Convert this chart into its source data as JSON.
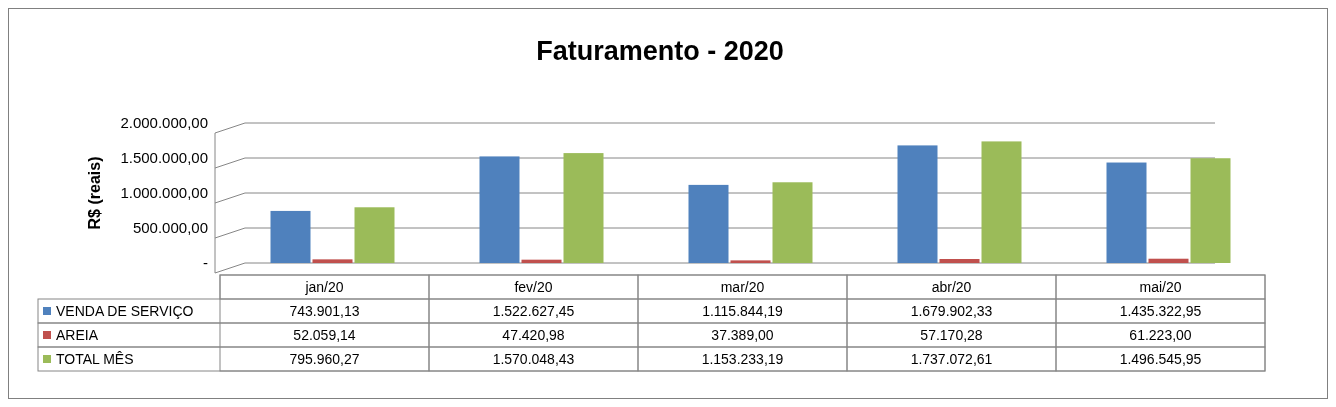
{
  "chart_data": {
    "type": "bar",
    "title": "Faturamento - 2020",
    "ylabel": "R$ (reais)",
    "categories": [
      "jan/20",
      "fev/20",
      "mar/20",
      "abr/20",
      "mai/20"
    ],
    "series": [
      {
        "name": "VENDA DE SERVIÇO",
        "color": "#4f81bd",
        "values": [
          743901.13,
          1522627.45,
          1115844.19,
          1679902.33,
          1435322.95
        ],
        "value_labels": [
          "743.901,13",
          "1.522.627,45",
          "1.115.844,19",
          "1.679.902,33",
          "1.435.322,95"
        ]
      },
      {
        "name": "AREIA",
        "color": "#c0504d",
        "values": [
          52059.14,
          47420.98,
          37389.0,
          57170.28,
          61223.0
        ],
        "value_labels": [
          "52.059,14",
          "47.420,98",
          "37.389,00",
          "57.170,28",
          "61.223,00"
        ]
      },
      {
        "name": "TOTAL MÊS",
        "color": "#9bbb59",
        "values": [
          795960.27,
          1570048.43,
          1153233.19,
          1737072.61,
          1496545.95
        ],
        "value_labels": [
          "795.960,27",
          "1.570.048,43",
          "1.153.233,19",
          "1.737.072,61",
          "1.496.545,95"
        ]
      }
    ],
    "ylim": [
      0,
      2000000
    ],
    "yticks": [
      {
        "value": 0,
        "label": "-"
      },
      {
        "value": 500000,
        "label": "500.000,00"
      },
      {
        "value": 1000000,
        "label": "1.000.000,00"
      },
      {
        "value": 1500000,
        "label": "1.500.000,00"
      },
      {
        "value": 2000000,
        "label": "2.000.000,00"
      }
    ],
    "grid": "y",
    "legend": "bottom"
  }
}
